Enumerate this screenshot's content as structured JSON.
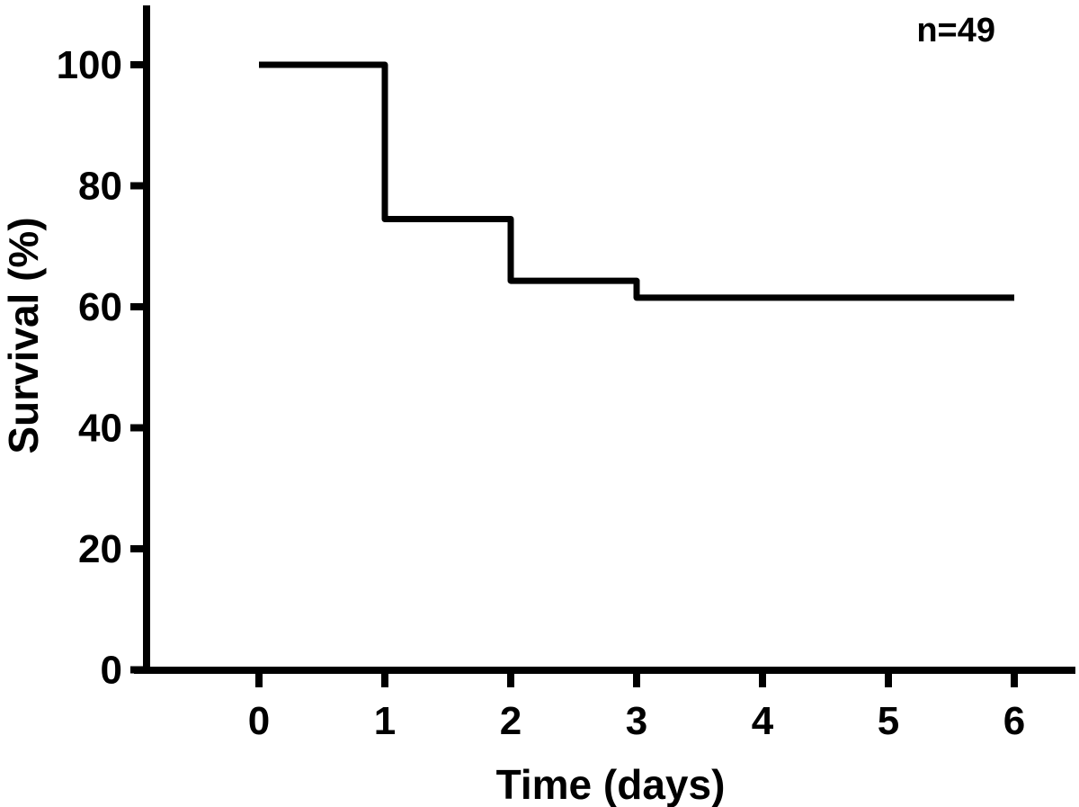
{
  "chart_data": {
    "type": "line",
    "subtype": "step-survival-curve",
    "title": "",
    "xlabel": "Time (days)",
    "ylabel": "Survival (%)",
    "annotation": "n=49",
    "n": 49,
    "xticks": [
      0,
      1,
      2,
      3,
      4,
      5,
      6
    ],
    "yticks": [
      0,
      20,
      40,
      60,
      80,
      100
    ],
    "xlim": [
      0,
      6
    ],
    "ylim": [
      0,
      100
    ],
    "grid": false,
    "legend": "none",
    "line_color": "#000000",
    "series": [
      {
        "name": "survival",
        "steps": [
          {
            "x_start": 0,
            "x_end": 1,
            "y": 100
          },
          {
            "x_start": 1,
            "x_end": 2,
            "y": 74.5
          },
          {
            "x_start": 2,
            "x_end": 3,
            "y": 64.3
          },
          {
            "x_start": 3,
            "x_end": 6,
            "y": 61.5
          }
        ]
      }
    ]
  }
}
